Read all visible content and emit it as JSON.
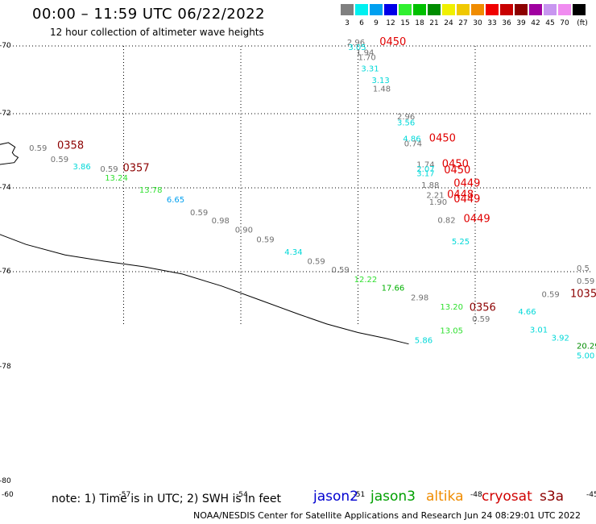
{
  "header": {
    "title": "00:00 – 11:59 UTC 06/22/2022",
    "subtitle": "12 hour collection of altimeter wave heights"
  },
  "legend": {
    "unit": "(ft)",
    "bins": [
      {
        "label": "3",
        "color": "#808080"
      },
      {
        "label": "6",
        "color": "#00f0f0"
      },
      {
        "label": "9",
        "color": "#00a0f0"
      },
      {
        "label": "12",
        "color": "#0000e8"
      },
      {
        "label": "15",
        "color": "#30f030"
      },
      {
        "label": "18",
        "color": "#00c000"
      },
      {
        "label": "21",
        "color": "#008c00"
      },
      {
        "label": "24",
        "color": "#f0f000"
      },
      {
        "label": "27",
        "color": "#f0c800"
      },
      {
        "label": "30",
        "color": "#f08c00"
      },
      {
        "label": "33",
        "color": "#f00000"
      },
      {
        "label": "36",
        "color": "#c80000"
      },
      {
        "label": "39",
        "color": "#8c0000"
      },
      {
        "label": "42",
        "color": "#a000a0"
      },
      {
        "label": "45",
        "color": "#c896f0"
      },
      {
        "label": "70",
        "color": "#f08cf0"
      },
      {
        "label": "",
        "color": "#000000"
      }
    ]
  },
  "map": {
    "latitudes": [
      {
        "label": "-70",
        "lat": -70
      },
      {
        "label": "-72",
        "lat": -72
      },
      {
        "label": "-74",
        "lat": -74
      },
      {
        "label": "-76",
        "lat": -76
      },
      {
        "label": "-78",
        "lat": -78
      },
      {
        "label": "-80",
        "lat": -80
      }
    ],
    "longitudes": [
      {
        "label": "-60",
        "lon": -60
      },
      {
        "label": "-57",
        "lon": -57
      },
      {
        "label": "-54",
        "lon": -54
      },
      {
        "label": "-51",
        "lon": -51
      },
      {
        "label": "-48",
        "lon": -48
      },
      {
        "label": "-45",
        "lon": -45
      }
    ],
    "observations": [
      {
        "text": "2.96",
        "color": "#707070",
        "lon": -51.28,
        "lat": -69.98
      },
      {
        "text": "3.05",
        "color": "#00d8d8",
        "lon": -51.25,
        "lat": -70.12
      },
      {
        "text": "1.94",
        "color": "#707070",
        "lon": -51.05,
        "lat": -70.27
      },
      {
        "text": "1.70",
        "color": "#707070",
        "lon": -51.0,
        "lat": -70.42
      },
      {
        "text": "0450",
        "color": "#e00000",
        "lon": -50.45,
        "lat": -69.98
      },
      {
        "text": "3.31",
        "color": "#00d8d8",
        "lon": -50.92,
        "lat": -70.75
      },
      {
        "text": "3.13",
        "color": "#00d8d8",
        "lon": -50.65,
        "lat": -71.1
      },
      {
        "text": "1.48",
        "color": "#707070",
        "lon": -50.62,
        "lat": -71.35
      },
      {
        "text": "2.96",
        "color": "#707070",
        "lon": -50.0,
        "lat": -72.15
      },
      {
        "text": "3.56",
        "color": "#00d8d8",
        "lon": -50.0,
        "lat": -72.32
      },
      {
        "text": "4.86",
        "color": "#00d8d8",
        "lon": -49.85,
        "lat": -72.75
      },
      {
        "text": "0.74",
        "color": "#707070",
        "lon": -49.82,
        "lat": -72.88
      },
      {
        "text": "0450",
        "color": "#e00000",
        "lon": -49.18,
        "lat": -72.75
      },
      {
        "text": "1.74",
        "color": "#707070",
        "lon": -49.5,
        "lat": -73.45
      },
      {
        "text": "2.07",
        "color": "#00d8d8",
        "lon": -49.5,
        "lat": -73.57
      },
      {
        "text": "3.17",
        "color": "#00d8d8",
        "lon": -49.5,
        "lat": -73.69
      },
      {
        "text": "0450",
        "color": "#e00000",
        "lon": -48.85,
        "lat": -73.45
      },
      {
        "text": "0450",
        "color": "#e00000",
        "lon": -48.8,
        "lat": -73.61
      },
      {
        "text": "1.88",
        "color": "#707070",
        "lon": -49.38,
        "lat": -74.0
      },
      {
        "text": "0449",
        "color": "#e00000",
        "lon": -48.55,
        "lat": -73.97
      },
      {
        "text": "2.21",
        "color": "#707070",
        "lon": -49.25,
        "lat": -74.24
      },
      {
        "text": "1.90",
        "color": "#707070",
        "lon": -49.18,
        "lat": -74.4
      },
      {
        "text": "0448",
        "color": "#e00000",
        "lon": -48.72,
        "lat": -74.24
      },
      {
        "text": "0449",
        "color": "#e00000",
        "lon": -48.55,
        "lat": -74.35
      },
      {
        "text": "0.82",
        "color": "#707070",
        "lon": -48.96,
        "lat": -74.84
      },
      {
        "text": "0449",
        "color": "#e00000",
        "lon": -48.3,
        "lat": -74.82
      },
      {
        "text": "5.25",
        "color": "#00d8d8",
        "lon": -48.6,
        "lat": -75.35
      },
      {
        "text": "0.59",
        "color": "#707070",
        "lon": -59.42,
        "lat": -73.0
      },
      {
        "text": "0358",
        "color": "#8c0000",
        "lon": -58.7,
        "lat": -72.95
      },
      {
        "text": "0.59",
        "color": "#707070",
        "lon": -58.87,
        "lat": -73.3
      },
      {
        "text": "3.86",
        "color": "#00d8d8",
        "lon": -58.3,
        "lat": -73.5
      },
      {
        "text": "0.59",
        "color": "#707070",
        "lon": -57.6,
        "lat": -73.57
      },
      {
        "text": "0357",
        "color": "#8c0000",
        "lon": -57.02,
        "lat": -73.55
      },
      {
        "text": "13.24",
        "color": "#30e030",
        "lon": -57.48,
        "lat": -73.8
      },
      {
        "text": "13.78",
        "color": "#30e030",
        "lon": -56.6,
        "lat": -74.12
      },
      {
        "text": "6.65",
        "color": "#00a0f0",
        "lon": -55.9,
        "lat": -74.35
      },
      {
        "text": "0.59",
        "color": "#707070",
        "lon": -55.3,
        "lat": -74.65
      },
      {
        "text": "0.98",
        "color": "#707070",
        "lon": -54.75,
        "lat": -74.85
      },
      {
        "text": "0.90",
        "color": "#707070",
        "lon": -54.15,
        "lat": -75.07
      },
      {
        "text": "0.59",
        "color": "#707070",
        "lon": -53.6,
        "lat": -75.3
      },
      {
        "text": "4.34",
        "color": "#00d8d8",
        "lon": -52.88,
        "lat": -75.6
      },
      {
        "text": "0.59",
        "color": "#707070",
        "lon": -52.3,
        "lat": -75.82
      },
      {
        "text": "0.59",
        "color": "#707070",
        "lon": -51.68,
        "lat": -76.02
      },
      {
        "text": "12.22",
        "color": "#30e030",
        "lon": -51.1,
        "lat": -76.22
      },
      {
        "text": "17.66",
        "color": "#00b000",
        "lon": -50.4,
        "lat": -76.4
      },
      {
        "text": "2.98",
        "color": "#707070",
        "lon": -49.65,
        "lat": -76.6
      },
      {
        "text": "13.20",
        "color": "#30e030",
        "lon": -48.9,
        "lat": -76.8
      },
      {
        "text": "0356",
        "color": "#8c0000",
        "lon": -48.15,
        "lat": -76.82
      },
      {
        "text": "0.59",
        "color": "#707070",
        "lon": -48.08,
        "lat": -77.05
      },
      {
        "text": "13.05",
        "color": "#30e030",
        "lon": -48.9,
        "lat": -77.3
      },
      {
        "text": "5.86",
        "color": "#00d8d8",
        "lon": -49.55,
        "lat": -77.5
      },
      {
        "text": "4.66",
        "color": "#00d8d8",
        "lon": -46.9,
        "lat": -76.9
      },
      {
        "text": "0.59",
        "color": "#707070",
        "lon": -46.3,
        "lat": -76.53
      },
      {
        "text": "1035",
        "color": "#8c0000",
        "lon": -45.52,
        "lat": -76.53
      },
      {
        "text": "0.59",
        "color": "#707070",
        "lon": -45.3,
        "lat": -76.25
      },
      {
        "text": "0.5",
        "color": "#707070",
        "lon": -44.35,
        "lat": -75.98
      },
      {
        "text": "3.01",
        "color": "#00d8d8",
        "lon": -46.6,
        "lat": -77.28
      },
      {
        "text": "3.92",
        "color": "#00d8d8",
        "lon": -46.05,
        "lat": -77.45
      },
      {
        "text": "20.29",
        "color": "#008c00",
        "lon": -45.3,
        "lat": -77.62
      },
      {
        "text": "5.00",
        "color": "#00d8d8",
        "lon": -44.6,
        "lat": -77.82
      }
    ],
    "coastline": [
      [
        -60.2,
        -75.1
      ],
      [
        -59.5,
        -75.35
      ],
      [
        -58.5,
        -75.6
      ],
      [
        -57.5,
        -75.75
      ],
      [
        -56.5,
        -75.88
      ],
      [
        -55.5,
        -76.05
      ],
      [
        -54.5,
        -76.3
      ],
      [
        -53.5,
        -76.6
      ],
      [
        -52.5,
        -76.9
      ],
      [
        -51.8,
        -77.1
      ],
      [
        -51.0,
        -77.28
      ],
      [
        -50.3,
        -77.4
      ],
      [
        -49.7,
        -77.52
      ]
    ],
    "island": [
      [
        -60.25,
        -72.85
      ],
      [
        -59.95,
        -72.78
      ],
      [
        -59.78,
        -72.9
      ],
      [
        -59.85,
        -73.05
      ],
      [
        -59.8,
        -73.12
      ],
      [
        -59.7,
        -73.18
      ],
      [
        -59.8,
        -73.32
      ],
      [
        -60.25,
        -73.38
      ]
    ]
  },
  "footer": {
    "note": "note: 1) Time is in UTC; 2) SWH is in feet",
    "satellites": [
      {
        "name": "jason2",
        "color": "#0000d0"
      },
      {
        "name": "jason3",
        "color": "#00a000"
      },
      {
        "name": "altika",
        "color": "#f08c00"
      },
      {
        "name": "cryosat",
        "color": "#d00000"
      },
      {
        "name": "s3a",
        "color": "#8c0000"
      }
    ],
    "credit": "NOAA/NESDIS Center for Satellite Applications and Research   Jun 24 08:29:01 UTC 2022"
  }
}
